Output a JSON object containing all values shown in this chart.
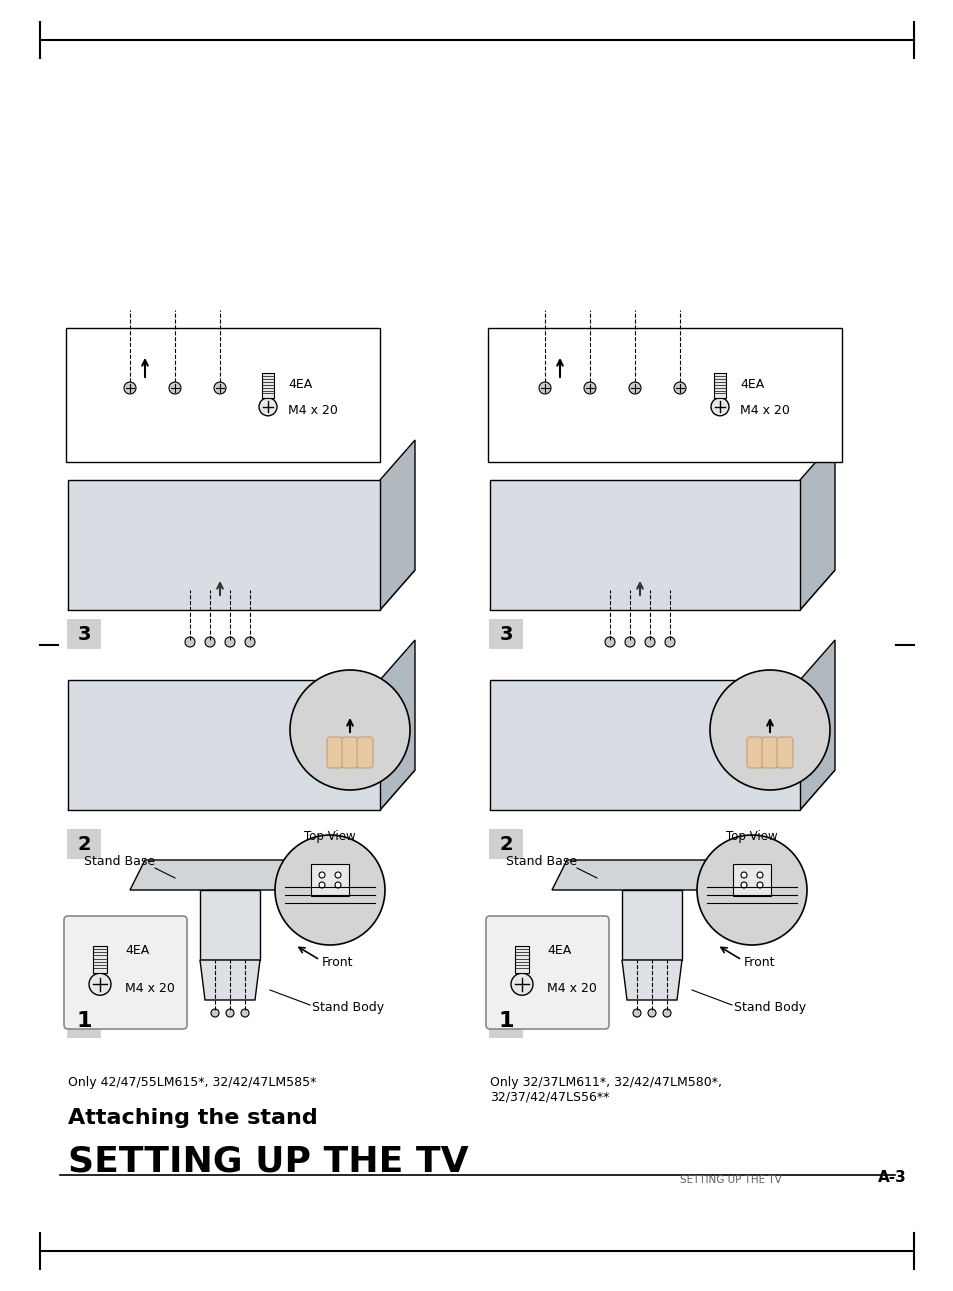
{
  "bg_color": "#ffffff",
  "page_color": "#ffffff",
  "header_line_color": "#000000",
  "header_text": "SETTING UP THE TV",
  "header_page": "A-3",
  "title": "SETTING UP THE TV",
  "subtitle": "Attaching the stand",
  "left_model": "Only 42/47/55LM615*, 32/42/47LM585*",
  "right_model": "Only 32/37LM611*, 32/42/47LM580*,\n32/37/42/47LS56**",
  "screw_label1": "M4 x 20",
  "screw_ea1": "4EA",
  "screw_label2": "M4 x 20",
  "screw_ea2": "4EA",
  "stand_body": "Stand Body",
  "stand_base": "Stand Base",
  "front_label": "Front",
  "top_view": "Top View",
  "step1_num": "1",
  "step2_num": "2",
  "step3_num": "3",
  "margin_color": "#e8e8e8",
  "circle_fill": "#d4d4d4",
  "box_fill": "#f0f0f0",
  "box_border": "#888888",
  "step_bg": "#d0d0d0",
  "dark_gray": "#606060",
  "mid_gray": "#909090",
  "light_gray": "#c0c0c0",
  "black": "#000000",
  "tv_fill": "#b0b8c0",
  "stand_fill": "#c8cdd2",
  "base_fill": "#d8dde0"
}
